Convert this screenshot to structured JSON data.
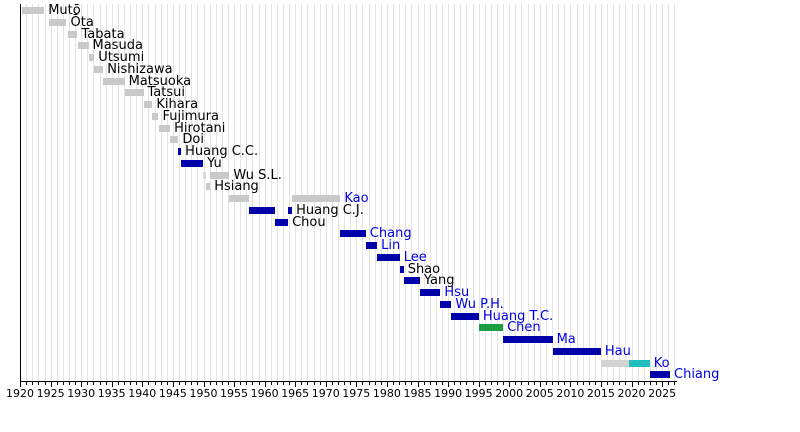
{
  "palette": {
    "gray": "#C9C9C9",
    "silverlight": "#DADADA",
    "silver": "#D3D3D3",
    "blue": "#0000AA",
    "green": "#1E9C40",
    "teal": "#22BEBE",
    "label_blue": "#0000E6",
    "label_black": "#000000",
    "grid_color": "#E3E3E3",
    "axis_color": "#000000"
  },
  "chart_data": {
    "type": "bar",
    "variant": "gantt-timeline",
    "title": "",
    "xlabel": "",
    "ylabel": "",
    "legend": "none",
    "grid": "vertical-yearly",
    "x_axis": {
      "min": 1920,
      "max": 2027,
      "major_tick_step": 5,
      "minor_tick_step": 1,
      "tick_labels": [
        "1920",
        "1925",
        "1930",
        "1935",
        "1940",
        "1945",
        "1950",
        "1955",
        "1960",
        "1965",
        "1970",
        "1975",
        "1980",
        "1985",
        "1990",
        "1995",
        "2000",
        "2005",
        "2010",
        "2015",
        "2020",
        "2025"
      ]
    },
    "rows": [
      {
        "name": "Mutō",
        "label_color": "black",
        "bars": [
          {
            "start": 1920.35,
            "end": 1923.95,
            "color": "gray"
          }
        ]
      },
      {
        "name": "Ōta",
        "label_color": "black",
        "bars": [
          {
            "start": 1924.8,
            "end": 1927.6,
            "color": "gray"
          }
        ]
      },
      {
        "name": "Tabata",
        "label_color": "black",
        "bars": [
          {
            "start": 1927.9,
            "end": 1929.4,
            "color": "gray"
          }
        ]
      },
      {
        "name": "Masuda",
        "label_color": "black",
        "bars": [
          {
            "start": 1929.4,
            "end": 1931.2,
            "color": "gray"
          }
        ]
      },
      {
        "name": "Utsumi",
        "label_color": "black",
        "bars": [
          {
            "start": 1931.2,
            "end": 1932.15,
            "color": "gray"
          }
        ]
      },
      {
        "name": "Nishizawa",
        "label_color": "black",
        "bars": [
          {
            "start": 1932.15,
            "end": 1933.6,
            "color": "gray"
          }
        ]
      },
      {
        "name": "Matsuoka",
        "label_color": "black",
        "bars": [
          {
            "start": 1933.6,
            "end": 1937.1,
            "color": "gray"
          }
        ]
      },
      {
        "name": "Tatsui",
        "label_color": "black",
        "bars": [
          {
            "start": 1937.1,
            "end": 1940.2,
            "color": "gray"
          }
        ]
      },
      {
        "name": "Kihara",
        "label_color": "black",
        "bars": [
          {
            "start": 1940.2,
            "end": 1941.65,
            "color": "gray"
          }
        ]
      },
      {
        "name": "Fujimura",
        "label_color": "black",
        "bars": [
          {
            "start": 1941.65,
            "end": 1942.65,
            "color": "gray"
          }
        ]
      },
      {
        "name": "Hirotani",
        "label_color": "black",
        "bars": [
          {
            "start": 1942.65,
            "end": 1944.55,
            "color": "gray"
          }
        ]
      },
      {
        "name": "Doi",
        "label_color": "black",
        "bars": [
          {
            "start": 1944.55,
            "end": 1945.9,
            "color": "gray"
          }
        ]
      },
      {
        "name": "Huang C.C.",
        "label_color": "black",
        "bars": [
          {
            "start": 1945.9,
            "end": 1946.35,
            "color": "blue"
          }
        ]
      },
      {
        "name": "Yu",
        "label_color": "black",
        "bars": [
          {
            "start": 1946.35,
            "end": 1949.95,
            "color": "blue"
          }
        ]
      },
      {
        "name": "Wu S.L.",
        "label_color": "black",
        "bars": [
          {
            "start": 1949.95,
            "end": 1950.4,
            "color": "silverlight"
          },
          {
            "start": 1951.1,
            "end": 1954.25,
            "color": "gray"
          }
        ]
      },
      {
        "name": "Hsiang",
        "label_color": "black",
        "bars": [
          {
            "start": 1950.4,
            "end": 1951.1,
            "color": "gray"
          }
        ]
      },
      {
        "name": "Kao",
        "label_color": "blue",
        "bars": [
          {
            "start": 1954.25,
            "end": 1957.45,
            "color": "gray"
          },
          {
            "start": 1964.5,
            "end": 1972.4,
            "color": "gray"
          }
        ]
      },
      {
        "name": "Huang C.J.",
        "label_color": "black",
        "bars": [
          {
            "start": 1957.45,
            "end": 1961.75,
            "color": "blue"
          },
          {
            "start": 1963.85,
            "end": 1964.5,
            "color": "blue"
          }
        ]
      },
      {
        "name": "Chou",
        "label_color": "black",
        "bars": [
          {
            "start": 1961.75,
            "end": 1963.85,
            "color": "blue"
          }
        ]
      },
      {
        "name": "Chang",
        "label_color": "blue",
        "bars": [
          {
            "start": 1972.4,
            "end": 1976.55,
            "color": "blue"
          }
        ]
      },
      {
        "name": "Lin",
        "label_color": "blue",
        "bars": [
          {
            "start": 1976.55,
            "end": 1978.4,
            "color": "blue"
          }
        ]
      },
      {
        "name": "Lee",
        "label_color": "blue",
        "bars": [
          {
            "start": 1978.4,
            "end": 1982.1,
            "color": "blue"
          }
        ]
      },
      {
        "name": "Shao",
        "label_color": "black",
        "bars": [
          {
            "start": 1982.1,
            "end": 1982.75,
            "color": "blue"
          }
        ]
      },
      {
        "name": "Yang",
        "label_color": "black",
        "bars": [
          {
            "start": 1982.75,
            "end": 1985.4,
            "color": "blue"
          }
        ]
      },
      {
        "name": "Hsu",
        "label_color": "blue",
        "bars": [
          {
            "start": 1985.4,
            "end": 1988.75,
            "color": "blue"
          }
        ]
      },
      {
        "name": "Wu P.H.",
        "label_color": "blue",
        "bars": [
          {
            "start": 1988.75,
            "end": 1990.55,
            "color": "blue"
          }
        ]
      },
      {
        "name": "Huang T.C.",
        "label_color": "blue",
        "bars": [
          {
            "start": 1990.55,
            "end": 1995.05,
            "color": "blue"
          }
        ]
      },
      {
        "name": "Chen",
        "label_color": "blue",
        "bars": [
          {
            "start": 1995.05,
            "end": 1999.0,
            "color": "green"
          }
        ]
      },
      {
        "name": "Ma",
        "label_color": "blue",
        "bars": [
          {
            "start": 1999.0,
            "end": 2007.1,
            "color": "blue"
          }
        ]
      },
      {
        "name": "Hau",
        "label_color": "blue",
        "bars": [
          {
            "start": 2007.1,
            "end": 2015.0,
            "color": "blue"
          }
        ]
      },
      {
        "name": "Ko",
        "label_color": "blue",
        "bars": [
          {
            "start": 2015.0,
            "end": 2019.6,
            "color": "silver"
          },
          {
            "start": 2019.6,
            "end": 2023.0,
            "color": "teal"
          }
        ]
      },
      {
        "name": "Chiang",
        "label_color": "blue",
        "bars": [
          {
            "start": 2023.0,
            "end": 2026.3,
            "color": "blue"
          }
        ]
      }
    ]
  }
}
